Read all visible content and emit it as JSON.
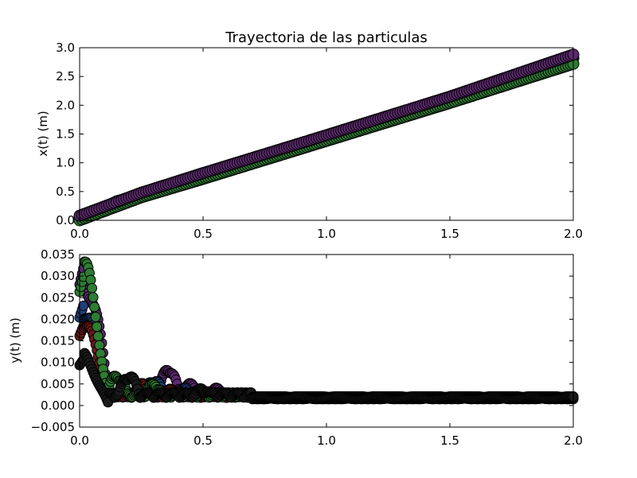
{
  "chart_data": [
    {
      "type": "scatter",
      "title": "Trayectoria de las particulas",
      "xlabel": "",
      "ylabel": "x(t) (m)",
      "xlim": [
        0.0,
        2.0
      ],
      "ylim": [
        0.0,
        3.0
      ],
      "xticks": [
        "0.0",
        "0.5",
        "1.0",
        "1.5",
        "2.0"
      ],
      "yticks": [
        "0.0",
        "0.5",
        "1.0",
        "1.5",
        "2.0",
        "2.5",
        "3.0"
      ],
      "grid": false,
      "series": [
        {
          "color": "#1a1a1a",
          "values_x": [
            0.0,
            0.05,
            0.1,
            0.15,
            0.25,
            0.5,
            0.75,
            1.0,
            1.25,
            1.5,
            1.75,
            2.0
          ],
          "values_y": [
            0.05,
            0.12,
            0.22,
            0.33,
            0.45,
            0.78,
            1.1,
            1.43,
            1.76,
            2.1,
            2.45,
            2.82
          ]
        },
        {
          "color": "#2e7d32",
          "values_x": [
            0.0,
            0.25,
            0.5,
            1.0,
            1.5,
            2.0
          ],
          "values_y": [
            0.0,
            0.4,
            0.72,
            1.38,
            2.04,
            2.72
          ]
        },
        {
          "color": "#5c2a6e",
          "values_x": [
            0.0,
            0.25,
            0.5,
            1.0,
            1.5,
            2.0
          ],
          "values_y": [
            0.08,
            0.48,
            0.82,
            1.48,
            2.15,
            2.88
          ]
        }
      ]
    },
    {
      "type": "scatter",
      "title": "",
      "xlabel": "",
      "ylabel": "y(t) (m)",
      "xlim": [
        0.0,
        2.0
      ],
      "ylim": [
        -0.005,
        0.035
      ],
      "xticks": [
        "0.0",
        "0.5",
        "1.0",
        "1.5",
        "2.0"
      ],
      "yticks": [
        "−0.005",
        "0.000",
        "0.005",
        "0.010",
        "0.015",
        "0.020",
        "0.025",
        "0.030",
        "0.035"
      ],
      "grid": false,
      "series": [
        {
          "color": "#5c2a6e",
          "decay_amp": 0.033,
          "bounces": [
            [
              0.36,
              0.0075
            ],
            [
              0.45,
              0.004
            ],
            [
              0.56,
              0.003
            ]
          ]
        },
        {
          "color": "#1f3f7a",
          "decay_amp": 0.024,
          "bounces": [
            [
              0.3,
              0.005
            ],
            [
              0.42,
              0.003
            ]
          ]
        },
        {
          "color": "#6b1a1a",
          "decay_amp": 0.019,
          "bounces": [
            [
              0.25,
              0.004
            ],
            [
              0.38,
              0.003
            ]
          ]
        },
        {
          "color": "#2e7d32",
          "decay_amp": 0.031,
          "bounces": [
            [
              0.15,
              0.006
            ],
            [
              0.3,
              0.004
            ]
          ]
        },
        {
          "color": "#1a1a1a",
          "decay_amp": 0.011,
          "bounces": [
            [
              0.2,
              0.006
            ],
            [
              0.5,
              0.003
            ]
          ]
        }
      ],
      "steady_y": 0.0018
    }
  ]
}
